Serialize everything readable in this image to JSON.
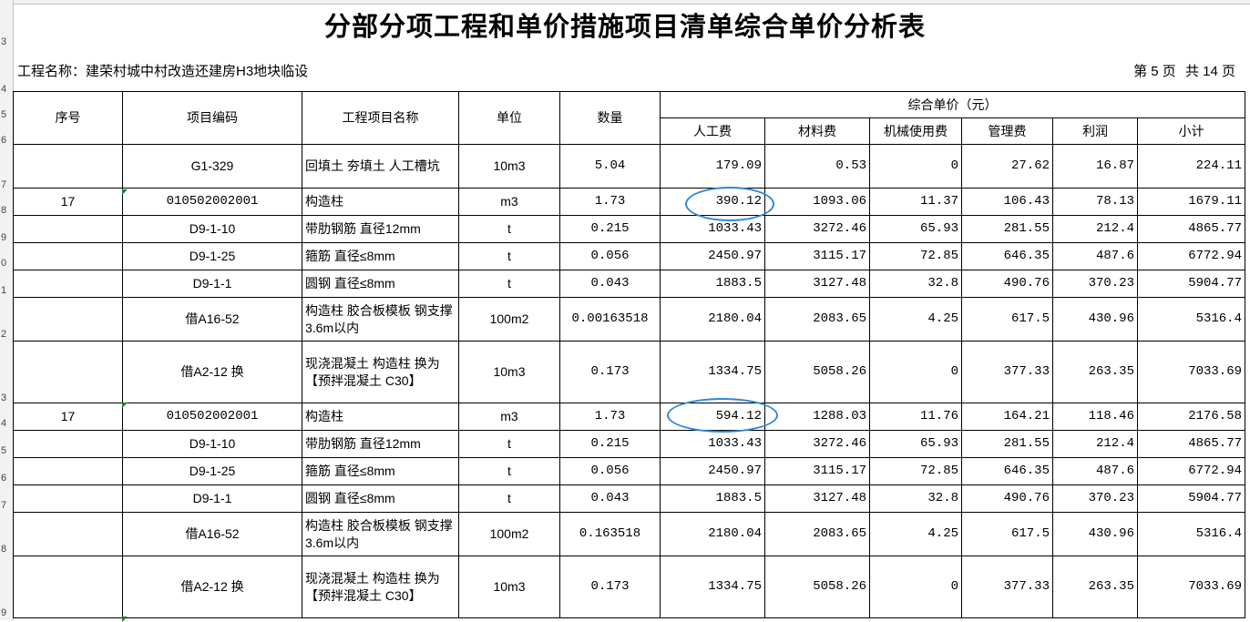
{
  "title": "分部分项工程和单价措施项目清单综合单价分析表",
  "project_label": "工程名称：建荣村城中村改造还建房H3地块临设",
  "page": {
    "current_label": "第 5 页",
    "total_label": "共 14 页"
  },
  "row_numbers": [
    "3",
    "4",
    "5",
    "6",
    "7",
    "8",
    "9",
    "0",
    "1",
    "2",
    "3",
    "4",
    "5",
    "6",
    "7",
    "8",
    "9"
  ],
  "headers": {
    "seq": "序号",
    "code": "项目编码",
    "name": "工程项目名称",
    "unit": "单位",
    "qty": "数量",
    "group": "综合单价（元）",
    "labor": "人工费",
    "material": "材料费",
    "machine": "机械使用费",
    "mgmt": "管理费",
    "profit": "利润",
    "subtotal": "小计"
  },
  "rows": [
    {
      "seq": "",
      "code": "G1-329",
      "name": "回填土 夯填土 人工槽坑",
      "unit": "10m3",
      "qty": "5.04",
      "labor": "179.09",
      "material": "0.53",
      "machine": "0",
      "mgmt": "27.62",
      "profit": "16.87",
      "subtotal": "224.11"
    },
    {
      "seq": "17",
      "code": "010502002001",
      "name": "构造柱",
      "unit": "m3",
      "qty": "1.73",
      "labor": "390.12",
      "material": "1093.06",
      "machine": "11.37",
      "mgmt": "106.43",
      "profit": "78.13",
      "subtotal": "1679.11"
    },
    {
      "seq": "",
      "code": "D9-1-10",
      "name": "带肋钢筋 直径12mm",
      "unit": "t",
      "qty": "0.215",
      "labor": "1033.43",
      "material": "3272.46",
      "machine": "65.93",
      "mgmt": "281.55",
      "profit": "212.4",
      "subtotal": "4865.77"
    },
    {
      "seq": "",
      "code": "D9-1-25",
      "name": "箍筋 直径≤8mm",
      "unit": "t",
      "qty": "0.056",
      "labor": "2450.97",
      "material": "3115.17",
      "machine": "72.85",
      "mgmt": "646.35",
      "profit": "487.6",
      "subtotal": "6772.94"
    },
    {
      "seq": "",
      "code": "D9-1-1",
      "name": "圆钢 直径≤8mm",
      "unit": "t",
      "qty": "0.043",
      "labor": "1883.5",
      "material": "3127.48",
      "machine": "32.8",
      "mgmt": "490.76",
      "profit": "370.23",
      "subtotal": "5904.77"
    },
    {
      "seq": "",
      "code": "借A16-52",
      "name": "构造柱 胶合板模板 钢支撑3.6m以内",
      "unit": "100m2",
      "qty": "0.00163518",
      "labor": "2180.04",
      "material": "2083.65",
      "machine": "4.25",
      "mgmt": "617.5",
      "profit": "430.96",
      "subtotal": "5316.4"
    },
    {
      "seq": "",
      "code": "借A2-12 换",
      "name": "现浇混凝土 构造柱 换为【预拌混凝土 C30】",
      "unit": "10m3",
      "qty": "0.173",
      "labor": "1334.75",
      "material": "5058.26",
      "machine": "0",
      "mgmt": "377.33",
      "profit": "263.35",
      "subtotal": "7033.69"
    },
    {
      "seq": "17",
      "code": "010502002001",
      "name": "构造柱",
      "unit": "m3",
      "qty": "1.73",
      "labor": "594.12",
      "material": "1288.03",
      "machine": "11.76",
      "mgmt": "164.21",
      "profit": "118.46",
      "subtotal": "2176.58"
    },
    {
      "seq": "",
      "code": "D9-1-10",
      "name": "带肋钢筋 直径12mm",
      "unit": "t",
      "qty": "0.215",
      "labor": "1033.43",
      "material": "3272.46",
      "machine": "65.93",
      "mgmt": "281.55",
      "profit": "212.4",
      "subtotal": "4865.77"
    },
    {
      "seq": "",
      "code": "D9-1-25",
      "name": "箍筋 直径≤8mm",
      "unit": "t",
      "qty": "0.056",
      "labor": "2450.97",
      "material": "3115.17",
      "machine": "72.85",
      "mgmt": "646.35",
      "profit": "487.6",
      "subtotal": "6772.94"
    },
    {
      "seq": "",
      "code": "D9-1-1",
      "name": "圆钢 直径≤8mm",
      "unit": "t",
      "qty": "0.043",
      "labor": "1883.5",
      "material": "3127.48",
      "machine": "32.8",
      "mgmt": "490.76",
      "profit": "370.23",
      "subtotal": "5904.77"
    },
    {
      "seq": "",
      "code": "借A16-52",
      "name": "构造柱 胶合板模板 钢支撑3.6m以内",
      "unit": "100m2",
      "qty": "0.163518",
      "labor": "2180.04",
      "material": "2083.65",
      "machine": "4.25",
      "mgmt": "617.5",
      "profit": "430.96",
      "subtotal": "5316.4"
    },
    {
      "seq": "",
      "code": "借A2-12 换",
      "name": "现浇混凝土 构造柱 换为【预拌混凝土 C30】",
      "unit": "10m3",
      "qty": "0.173",
      "labor": "1334.75",
      "material": "5058.26",
      "machine": "0",
      "mgmt": "377.33",
      "profit": "263.35",
      "subtotal": "7033.69"
    }
  ],
  "colors": {
    "highlight_circle": "#2f86d6",
    "comment_marker": "#1a7f2e",
    "grid_header": "#f2f2f2"
  }
}
